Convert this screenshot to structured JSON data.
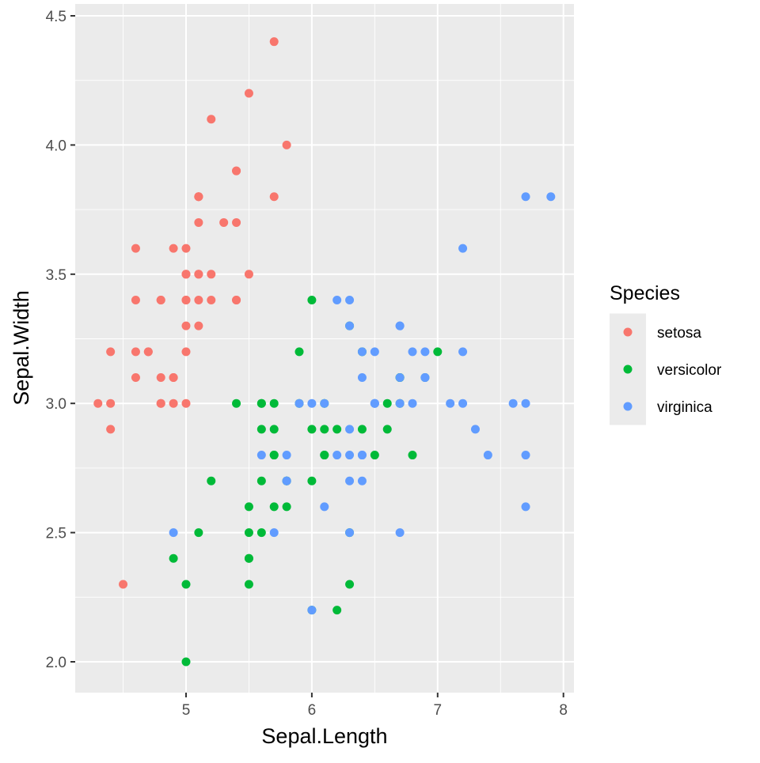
{
  "chart_data": {
    "type": "scatter",
    "title": "",
    "xlabel": "Sepal.Length",
    "ylabel": "Sepal.Width",
    "xlim": [
      4.12,
      8.08
    ],
    "ylim": [
      1.88,
      4.52
    ],
    "xticks": [
      5,
      6,
      7,
      8
    ],
    "xtick_labels": [
      "5",
      "6",
      "7",
      "8"
    ],
    "yticks": [
      2.0,
      2.5,
      3.0,
      3.5,
      4.0,
      4.5
    ],
    "ytick_labels": [
      "2.0",
      "2.5",
      "3.0",
      "3.5",
      "4.0",
      "4.5"
    ],
    "grid": true,
    "legend": {
      "title": "Species",
      "position": "right"
    },
    "series": [
      {
        "name": "setosa",
        "color": "#F8766D",
        "x": [
          5.1,
          4.9,
          4.7,
          4.6,
          5.0,
          5.4,
          4.6,
          5.0,
          4.4,
          4.9,
          5.4,
          4.8,
          4.8,
          4.3,
          5.8,
          5.7,
          5.4,
          5.1,
          5.7,
          5.1,
          5.4,
          5.1,
          4.6,
          5.1,
          4.8,
          5.0,
          5.0,
          5.2,
          5.2,
          4.7,
          4.8,
          5.4,
          5.2,
          5.5,
          4.9,
          5.0,
          5.5,
          4.9,
          4.4,
          5.1,
          5.0,
          4.5,
          4.4,
          5.0,
          5.1,
          4.8,
          5.1,
          4.6,
          5.3,
          5.0
        ],
        "y": [
          3.5,
          3.0,
          3.2,
          3.1,
          3.6,
          3.9,
          3.4,
          3.4,
          2.9,
          3.1,
          3.7,
          3.4,
          3.0,
          3.0,
          4.0,
          4.4,
          3.9,
          3.5,
          3.8,
          3.8,
          3.4,
          3.7,
          3.6,
          3.3,
          3.4,
          3.0,
          3.4,
          3.5,
          3.4,
          3.2,
          3.1,
          3.4,
          4.1,
          4.2,
          3.1,
          3.2,
          3.5,
          3.6,
          3.0,
          3.4,
          3.5,
          2.3,
          3.2,
          3.5,
          3.8,
          3.0,
          3.8,
          3.2,
          3.7,
          3.3
        ]
      },
      {
        "name": "versicolor",
        "color": "#00BA38",
        "x": [
          7.0,
          6.4,
          6.9,
          5.5,
          6.5,
          5.7,
          6.3,
          4.9,
          6.6,
          5.2,
          5.0,
          5.9,
          6.0,
          6.1,
          5.6,
          6.7,
          5.6,
          5.8,
          6.2,
          5.6,
          5.9,
          6.1,
          6.3,
          6.1,
          6.4,
          6.6,
          6.8,
          6.7,
          6.0,
          5.7,
          5.5,
          5.5,
          5.8,
          6.0,
          5.4,
          6.0,
          6.7,
          6.3,
          5.6,
          5.5,
          5.5,
          6.1,
          5.8,
          5.0,
          5.6,
          5.7,
          5.7,
          6.2,
          5.1,
          5.7
        ],
        "y": [
          3.2,
          3.2,
          3.1,
          2.3,
          2.8,
          2.8,
          3.3,
          2.4,
          2.9,
          2.7,
          2.0,
          3.0,
          2.2,
          2.9,
          2.9,
          3.1,
          3.0,
          2.7,
          2.2,
          2.5,
          3.2,
          2.8,
          2.5,
          2.8,
          2.9,
          3.0,
          2.8,
          3.0,
          2.9,
          2.6,
          2.4,
          2.4,
          2.7,
          2.7,
          3.0,
          3.4,
          3.1,
          2.3,
          3.0,
          2.5,
          2.6,
          3.0,
          2.6,
          2.3,
          2.7,
          3.0,
          2.9,
          2.9,
          2.5,
          2.8
        ]
      },
      {
        "name": "virginica",
        "color": "#619CFF",
        "x": [
          6.3,
          5.8,
          7.1,
          6.3,
          6.5,
          7.6,
          4.9,
          7.3,
          6.7,
          7.2,
          6.5,
          6.4,
          6.8,
          5.7,
          5.8,
          6.4,
          6.5,
          7.7,
          7.7,
          6.0,
          6.9,
          5.6,
          7.7,
          6.3,
          6.7,
          7.2,
          6.2,
          6.1,
          6.4,
          7.2,
          7.4,
          7.9,
          6.4,
          6.3,
          6.1,
          7.7,
          6.3,
          6.4,
          6.0,
          6.9,
          6.7,
          6.9,
          5.8,
          6.8,
          6.7,
          6.7,
          6.3,
          6.5,
          6.2,
          5.9
        ],
        "y": [
          3.3,
          2.7,
          3.0,
          2.9,
          3.0,
          3.0,
          2.5,
          2.9,
          2.5,
          3.6,
          3.2,
          2.7,
          3.0,
          2.5,
          2.8,
          3.2,
          3.0,
          3.8,
          2.6,
          2.2,
          3.2,
          2.8,
          2.8,
          2.7,
          3.3,
          3.2,
          2.8,
          3.0,
          2.8,
          3.0,
          2.8,
          3.8,
          2.8,
          2.8,
          2.6,
          3.0,
          3.4,
          3.1,
          3.0,
          3.1,
          3.1,
          3.1,
          2.7,
          3.2,
          3.3,
          3.0,
          2.5,
          3.0,
          3.4,
          3.0
        ]
      }
    ]
  }
}
